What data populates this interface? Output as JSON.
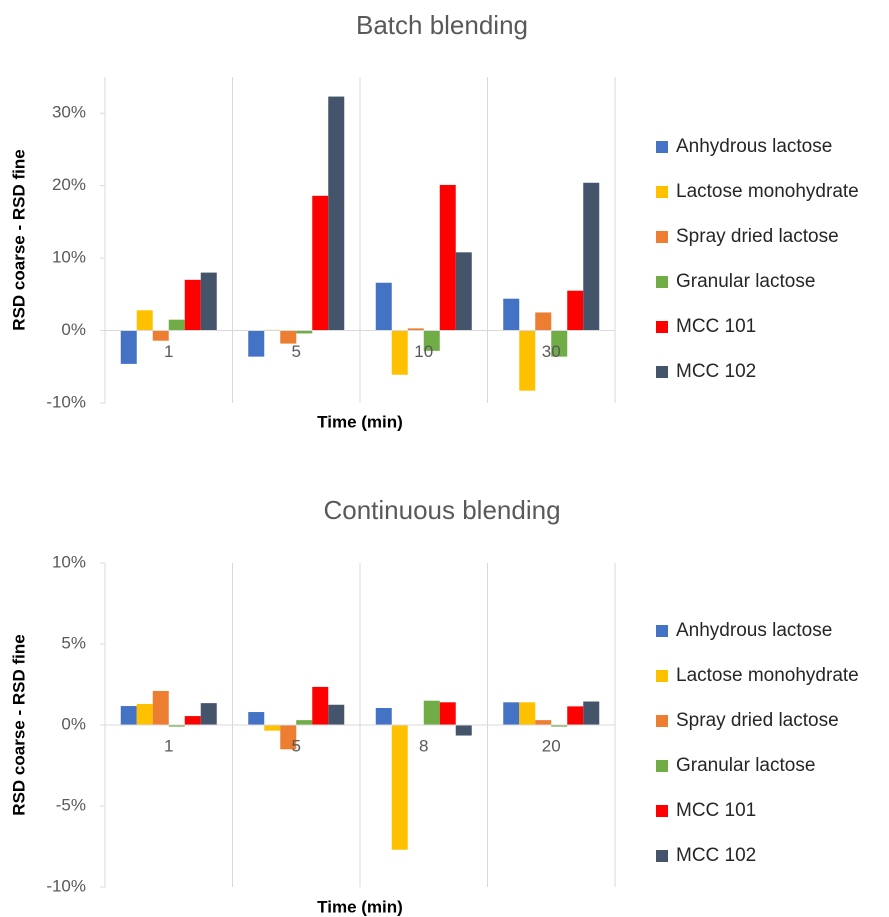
{
  "chart_data": [
    {
      "type": "bar",
      "title": "Batch blending",
      "x_label": "Time (min)",
      "y_label": "RSD coarse - RSD fine",
      "categories": [
        "1",
        "5",
        "10",
        "30"
      ],
      "series": [
        {
          "name": "Anhydrous lactose",
          "color": "#4472c4",
          "values": [
            -4.6,
            -3.6,
            6.6,
            4.4
          ]
        },
        {
          "name": "Lactose monohydrate",
          "color": "#ffc000",
          "values": [
            2.8,
            0.1,
            -6.1,
            -8.3
          ]
        },
        {
          "name": "Spray dried lactose",
          "color": "#ed7d31",
          "values": [
            -1.4,
            -1.8,
            0.3,
            2.5
          ]
        },
        {
          "name": "Granular lactose",
          "color": "#70ad47",
          "values": [
            1.5,
            -0.4,
            -2.8,
            -3.6
          ]
        },
        {
          "name": "MCC 101",
          "color": "#ff0000",
          "values": [
            7.0,
            18.6,
            20.1,
            5.5
          ]
        },
        {
          "name": "MCC 102",
          "color": "#44546a",
          "values": [
            8.0,
            32.3,
            10.8,
            20.4
          ]
        }
      ],
      "ylim": [
        -10,
        35
      ],
      "yticks": [
        {
          "value": -10,
          "label": "-10%"
        },
        {
          "value": 0,
          "label": "0%"
        },
        {
          "value": 10,
          "label": "10%"
        },
        {
          "value": 20,
          "label": "20%"
        },
        {
          "value": 30,
          "label": "30%"
        }
      ],
      "legend": "right"
    },
    {
      "type": "bar",
      "title": "Continuous blending",
      "x_label": "Time (min)",
      "y_label": "RSD coarse - RSD fine",
      "categories": [
        "1",
        "5",
        "8",
        "20"
      ],
      "series": [
        {
          "name": "Anhydrous lactose",
          "color": "#4472c4",
          "values": [
            1.17,
            0.8,
            1.05,
            1.4
          ]
        },
        {
          "name": "Lactose monohydrate",
          "color": "#ffc000",
          "values": [
            1.3,
            -0.35,
            -7.7,
            1.4
          ]
        },
        {
          "name": "Spray dried lactose",
          "color": "#ed7d31",
          "values": [
            2.1,
            -1.5,
            0,
            0.3
          ]
        },
        {
          "name": "Granular lactose",
          "color": "#70ad47",
          "values": [
            -0.1,
            0.3,
            1.5,
            -0.1
          ]
        },
        {
          "name": "MCC 101",
          "color": "#ff0000",
          "values": [
            0.55,
            2.35,
            1.4,
            1.15
          ]
        },
        {
          "name": "MCC 102",
          "color": "#44546a",
          "values": [
            1.35,
            1.25,
            -0.65,
            1.45
          ]
        }
      ],
      "ylim": [
        -10,
        10
      ],
      "yticks": [
        {
          "value": -10,
          "label": "-10%"
        },
        {
          "value": -5,
          "label": "-5%"
        },
        {
          "value": 0,
          "label": "0%"
        },
        {
          "value": 5,
          "label": "5%"
        },
        {
          "value": 10,
          "label": "10%"
        }
      ],
      "legend": "right"
    }
  ]
}
